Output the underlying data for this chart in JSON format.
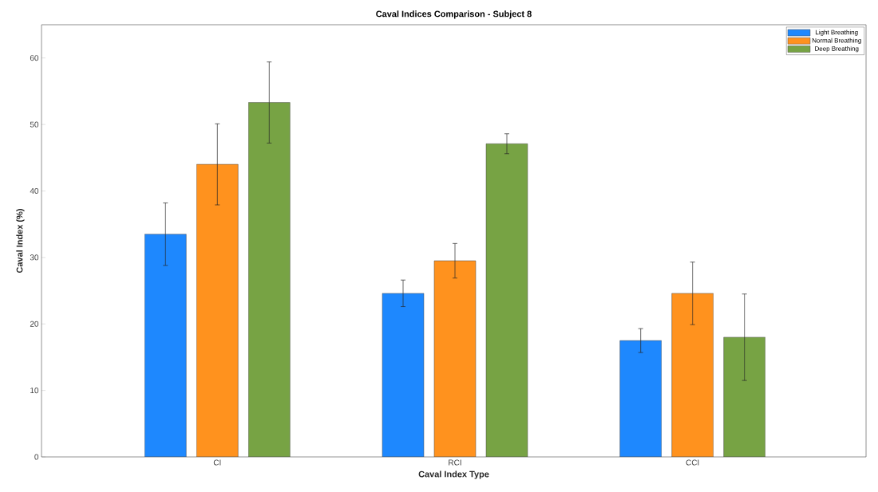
{
  "chart_data": {
    "type": "bar",
    "title": "Caval Indices Comparison - Subject 8",
    "xlabel": "Caval Index Type",
    "ylabel": "Caval Index (%)",
    "categories": [
      "CI",
      "RCI",
      "CCI"
    ],
    "series": [
      {
        "name": "Light Breathing",
        "color": "#1e88fe",
        "values": [
          33.5,
          24.6,
          17.5
        ],
        "errors": [
          4.7,
          2.0,
          1.8
        ]
      },
      {
        "name": "Normal Breathing",
        "color": "#ff921e",
        "values": [
          44.0,
          29.5,
          24.6
        ],
        "errors": [
          6.1,
          2.6,
          4.7
        ]
      },
      {
        "name": "Deep Breathing",
        "color": "#77a344",
        "values": [
          53.3,
          47.1,
          18.0
        ],
        "errors": [
          6.1,
          1.5,
          6.5
        ]
      }
    ],
    "ylim": [
      0,
      65
    ],
    "yticks": [
      0,
      10,
      20,
      30,
      40,
      50,
      60
    ],
    "legend": "top right",
    "grid": false
  }
}
